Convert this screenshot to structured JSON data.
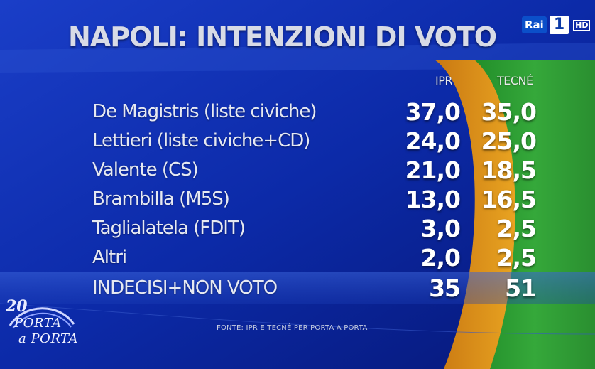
{
  "header": {
    "title": "NAPOLI: INTENZIONI DI VOTO"
  },
  "channel": {
    "brand": "Rai",
    "number": "1",
    "quality": "HD"
  },
  "chart_data": {
    "type": "table",
    "columns": [
      "IPR",
      "TECNÉ"
    ],
    "rows": [
      {
        "label": "De Magistris (liste civiche)",
        "values": [
          "37,0",
          "35,0"
        ]
      },
      {
        "label": "Lettieri (liste civiche+CD)",
        "values": [
          "24,0",
          "25,0"
        ]
      },
      {
        "label": "Valente (CS)",
        "values": [
          "21,0",
          "18,5"
        ]
      },
      {
        "label": "Brambilla (M5S)",
        "values": [
          "13,0",
          "16,5"
        ]
      },
      {
        "label": "Taglialatela (FDIT)",
        "values": [
          "3,0",
          "2,5"
        ]
      },
      {
        "label": "Altri",
        "values": [
          "2,0",
          "2,5"
        ]
      }
    ],
    "summary_row": {
      "label": "INDECISI+NON VOTO",
      "values": [
        "35",
        "51"
      ]
    },
    "colors": {
      "ipr": "#e29a1a",
      "tecne": "#2ea02a",
      "background": "#0a1c8c"
    }
  },
  "footer": {
    "source": "FONTE: IPR E TECNÉ PER PORTA A PORTA"
  },
  "show_logo": {
    "number": "20",
    "line1": "PORTA",
    "line2": "a PORTA"
  }
}
